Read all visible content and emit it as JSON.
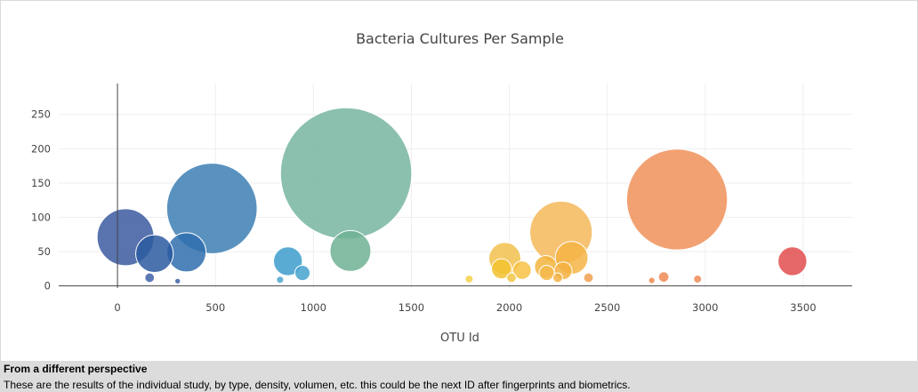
{
  "chart_data": {
    "type": "scatter",
    "title": "Bacteria Cultures Per Sample",
    "xlabel": "OTU Id",
    "ylabel": "",
    "xlim": [
      -300,
      3750
    ],
    "ylim": [
      -3,
      295
    ],
    "xticks": [
      0,
      500,
      1000,
      1500,
      2000,
      2500,
      3000,
      3500
    ],
    "yticks": [
      0,
      50,
      100,
      150,
      200,
      250
    ],
    "grid": true,
    "marker_size": "proportional to value",
    "colorscale": "Earth",
    "points": [
      {
        "x": 41,
        "y": 71,
        "color": "#3b5aa0"
      },
      {
        "x": 189,
        "y": 47,
        "color": "#2c5aa0"
      },
      {
        "x": 352,
        "y": 49,
        "color": "#2f6fae"
      },
      {
        "x": 482,
        "y": 113,
        "color": "#3d7fb4"
      },
      {
        "x": 164,
        "y": 12,
        "color": "#3f62a8"
      },
      {
        "x": 307,
        "y": 7,
        "color": "#3a5fa5"
      },
      {
        "x": 870,
        "y": 36,
        "color": "#3c9ccd"
      },
      {
        "x": 944,
        "y": 19,
        "color": "#45a3cf"
      },
      {
        "x": 830,
        "y": 9,
        "color": "#4aa6cf"
      },
      {
        "x": 1167,
        "y": 164,
        "color": "#77b5a0"
      },
      {
        "x": 1189,
        "y": 51,
        "color": "#6fb293"
      },
      {
        "x": 1977,
        "y": 40,
        "color": "#f2c14e"
      },
      {
        "x": 1960,
        "y": 25,
        "color": "#f2c230"
      },
      {
        "x": 2011,
        "y": 12,
        "color": "#f2c544"
      },
      {
        "x": 2065,
        "y": 23,
        "color": "#f6c244"
      },
      {
        "x": 1795,
        "y": 10,
        "color": "#f4d24a"
      },
      {
        "x": 2264,
        "y": 78,
        "color": "#f5b85a"
      },
      {
        "x": 2318,
        "y": 41,
        "color": "#f5b545"
      },
      {
        "x": 2186,
        "y": 28,
        "color": "#f3b540"
      },
      {
        "x": 2191,
        "y": 19,
        "color": "#f4b84a"
      },
      {
        "x": 2247,
        "y": 12,
        "color": "#f2b245"
      },
      {
        "x": 2275,
        "y": 22,
        "color": "#f3b040"
      },
      {
        "x": 2404,
        "y": 12,
        "color": "#f0a050"
      },
      {
        "x": 2856,
        "y": 126,
        "color": "#f0905a"
      },
      {
        "x": 2788,
        "y": 13,
        "color": "#ee8a55"
      },
      {
        "x": 2727,
        "y": 8,
        "color": "#ef8a50"
      },
      {
        "x": 2961,
        "y": 10,
        "color": "#ef8a55"
      },
      {
        "x": 3445,
        "y": 36,
        "color": "#e24c4c"
      }
    ]
  },
  "footer": {
    "heading": "From a different perspective",
    "text": "These are the results of the individual study, by type, density, volumen, etc. this could be the next ID after fingerprints and biometrics."
  }
}
